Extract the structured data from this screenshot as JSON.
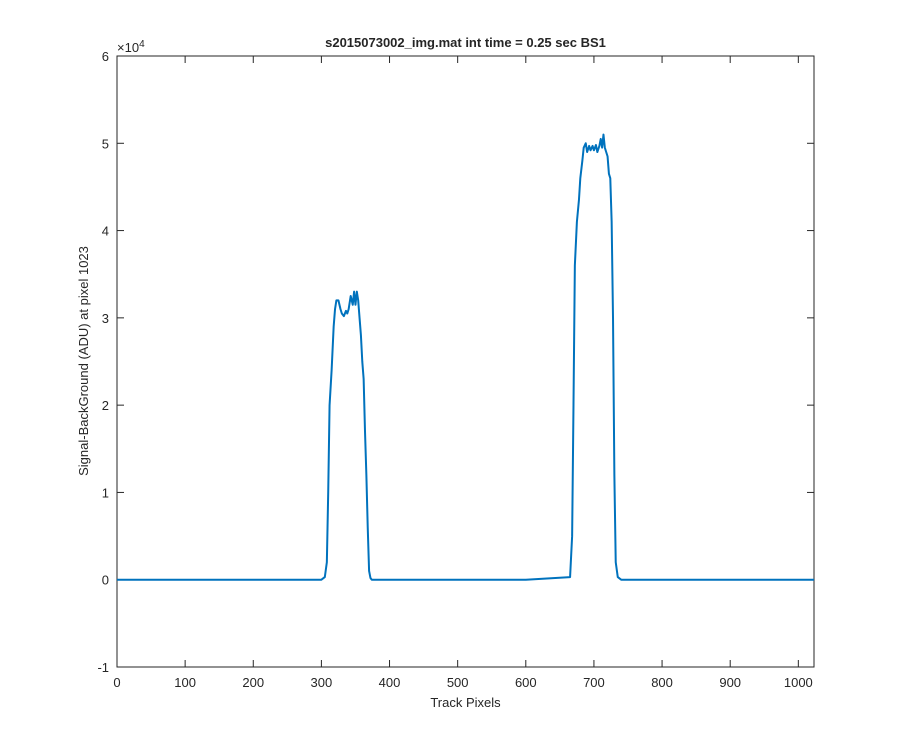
{
  "chart_data": {
    "type": "line",
    "title": "s2015073002_img.mat int time = 0.25 sec   BS1",
    "xlabel": "Track Pixels",
    "ylabel": "Signal-BackGround (ADU) at pixel 1023",
    "y_multiplier_text": "×10",
    "y_multiplier_exp": "4",
    "xlim": [
      0,
      1023
    ],
    "ylim": [
      -1,
      6
    ],
    "y_scale_factor": 10000,
    "x_ticks": [
      0,
      100,
      200,
      300,
      400,
      500,
      600,
      700,
      800,
      900,
      1000
    ],
    "x_tick_labels": [
      "0",
      "100",
      "200",
      "300",
      "400",
      "500",
      "600",
      "700",
      "800",
      "900",
      "1000"
    ],
    "y_ticks": [
      -1,
      0,
      1,
      2,
      3,
      4,
      5,
      6
    ],
    "y_tick_labels": [
      "-1",
      "0",
      "1",
      "2",
      "3",
      "4",
      "5",
      "6"
    ],
    "grid": false,
    "line_color": "#0072BD",
    "series": [
      {
        "x": [
          0,
          100,
          200,
          300,
          305,
          308,
          310,
          312,
          315,
          318,
          320,
          322,
          325,
          328,
          330,
          333,
          336,
          338,
          340,
          343,
          346,
          348,
          350,
          352,
          354,
          356,
          358,
          360,
          362,
          364,
          366,
          368,
          370,
          372,
          374,
          376,
          380,
          400,
          500,
          600,
          665,
          668,
          670,
          672,
          675,
          678,
          680,
          683,
          685,
          688,
          690,
          693,
          695,
          698,
          700,
          703,
          705,
          708,
          710,
          712,
          714,
          716,
          718,
          720,
          722,
          724,
          726,
          728,
          730,
          732,
          735,
          740,
          800,
          900,
          1023
        ],
        "y": [
          0,
          0,
          0,
          0,
          0.03,
          0.2,
          1.0,
          2.0,
          2.4,
          2.9,
          3.1,
          3.2,
          3.2,
          3.1,
          3.05,
          3.02,
          3.08,
          3.05,
          3.1,
          3.25,
          3.15,
          3.3,
          3.15,
          3.3,
          3.2,
          3.0,
          2.8,
          2.5,
          2.3,
          1.7,
          1.2,
          0.6,
          0.1,
          0.02,
          0,
          0,
          0,
          0,
          0,
          0,
          0.03,
          0.5,
          2.0,
          3.6,
          4.1,
          4.35,
          4.6,
          4.8,
          4.95,
          5.0,
          4.9,
          4.97,
          4.92,
          4.97,
          4.92,
          4.98,
          4.9,
          4.97,
          5.05,
          4.95,
          5.1,
          4.95,
          4.9,
          4.85,
          4.65,
          4.6,
          4.1,
          3.0,
          1.2,
          0.2,
          0.03,
          0,
          0,
          0,
          0
        ]
      }
    ]
  }
}
